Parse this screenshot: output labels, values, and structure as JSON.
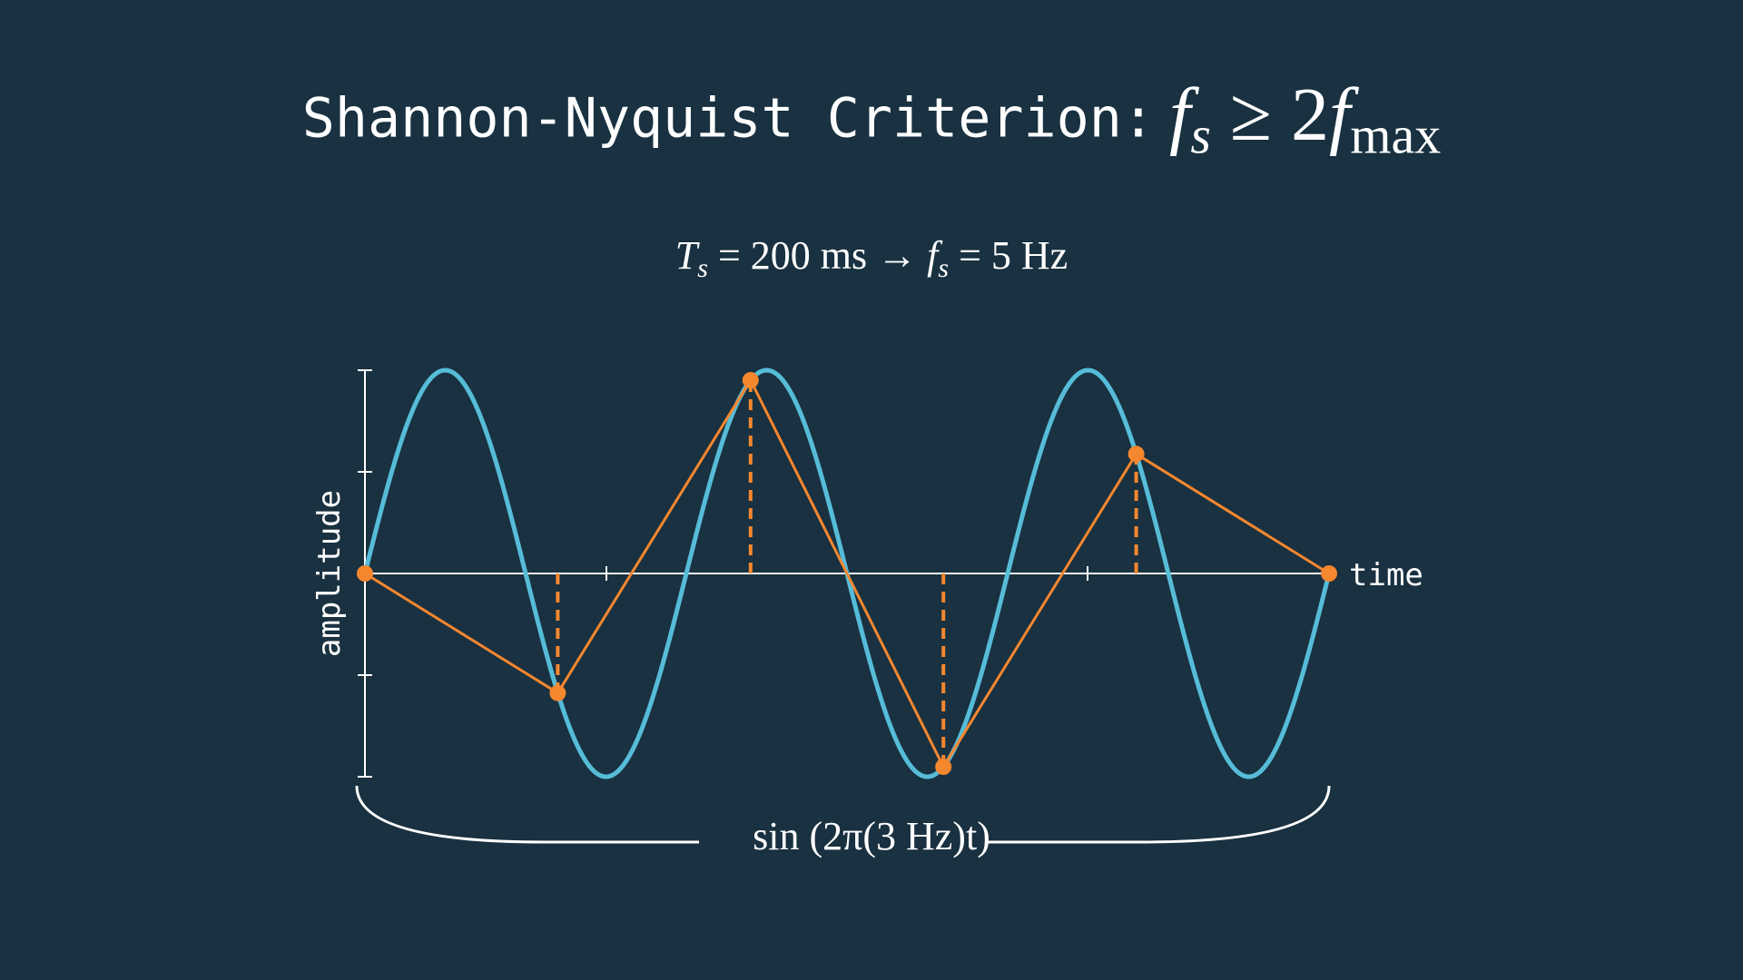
{
  "title": {
    "text": "Shannon-Nyquist Criterion:",
    "math_f": "f",
    "math_s": "s",
    "math_op": "≥ 2",
    "math_f2": "f",
    "math_max": "max"
  },
  "sampling_formula": {
    "T": "T",
    "s1": "s",
    "part1": " = 200 ms → ",
    "f": "f",
    "s2": "s",
    "part2": " = 5 Hz"
  },
  "axes": {
    "x_label": "time",
    "y_label": "amplitude"
  },
  "signal_label": {
    "fn": "sin",
    "body": " (2π(3 Hz)",
    "t": "t",
    "close": ")"
  },
  "colors": {
    "background": "#193140",
    "signal": "#56bcd8",
    "samples": "#f5872f",
    "axes": "#ffffff"
  },
  "chart_data": {
    "type": "line",
    "signal": {
      "frequency_hz": 3,
      "amplitude": 1,
      "t_range": [
        0,
        1
      ]
    },
    "sampling": {
      "period_ms": 200,
      "rate_hz": 5
    },
    "samples": [
      {
        "t": 0.0,
        "y": 0
      },
      {
        "t": 0.2,
        "y": -0.588
      },
      {
        "t": 0.4,
        "y": 0.951
      },
      {
        "t": 0.6,
        "y": -0.951
      },
      {
        "t": 0.8,
        "y": 0.588
      },
      {
        "t": 1.0,
        "y": 0
      }
    ],
    "ylim": [
      -1,
      1
    ],
    "xlabel": "time",
    "ylabel": "amplitude"
  }
}
